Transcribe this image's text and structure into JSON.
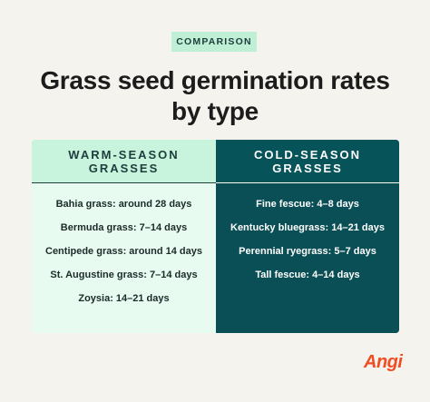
{
  "badge": "COMPARISON",
  "title": {
    "line1": "Grass seed germination rates",
    "line2": "by type"
  },
  "warm": {
    "header_line1": "WARM-SEASON",
    "header_line2": "GRASSES",
    "items": [
      "Bahia grass: around 28 days",
      "Bermuda grass: 7–14 days",
      "Centipede grass: around 14 days",
      "St. Augustine grass: 7–14 days",
      "Zoysia: 14–21 days"
    ]
  },
  "cold": {
    "header_line1": "COLD-SEASON",
    "header_line2": "GRASSES",
    "items": [
      "Fine fescue: 4–8 days",
      "Kentucky bluegrass: 14–21 days",
      "Perennial ryegrass: 5–7 days",
      "Tall fescue: 4–14 days"
    ]
  },
  "logo": "Angi",
  "colors": {
    "background": "#f5f3ee",
    "mint": "#bff0d6",
    "teal": "#07535a",
    "logo": "#f04d22"
  }
}
